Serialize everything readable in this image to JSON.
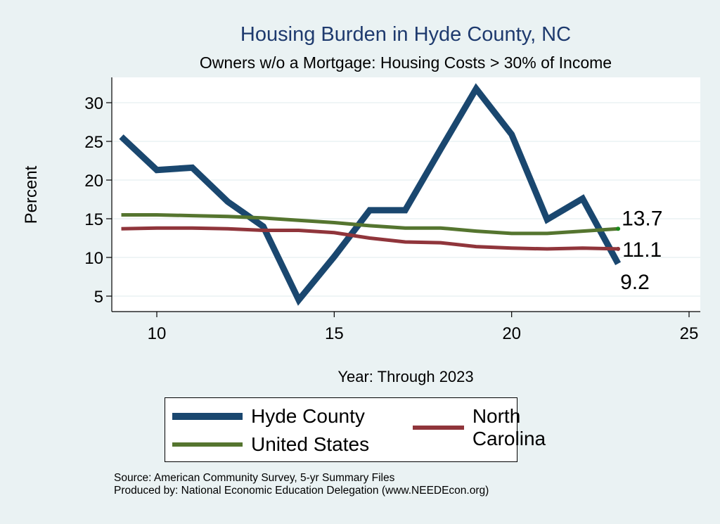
{
  "chart_data": {
    "type": "line",
    "title": "Housing Burden in Hyde County, NC",
    "subtitle": "Owners w/o a Mortgage: Housing Costs > 30% of Income",
    "xlabel": "Year: Through 2023",
    "ylabel": "Percent",
    "xlim": [
      9,
      25
    ],
    "ylim": [
      3.5,
      33
    ],
    "xticks": [
      10,
      15,
      20,
      25
    ],
    "yticks": [
      5,
      10,
      15,
      20,
      25,
      30
    ],
    "grid": true,
    "legend_position": "bottom",
    "x": [
      9,
      10,
      11,
      12,
      13,
      14,
      15,
      16,
      17,
      18,
      19,
      20,
      21,
      22,
      23
    ],
    "series": [
      {
        "name": "Hyde County",
        "color": "#1a476f",
        "values": [
          25.6,
          21.3,
          21.6,
          17.2,
          14.0,
          4.5,
          10.1,
          16.1,
          16.1,
          24.0,
          31.8,
          25.9,
          14.9,
          17.6,
          9.2
        ],
        "end_label": "9.2"
      },
      {
        "name": "North Carolina",
        "color": "#90353b",
        "values": [
          13.7,
          13.8,
          13.8,
          13.7,
          13.5,
          13.5,
          13.2,
          12.5,
          12.0,
          11.9,
          11.4,
          11.2,
          11.1,
          11.2,
          11.1
        ],
        "end_label": "11.1"
      },
      {
        "name": "United States",
        "color": "#55752f",
        "values": [
          15.5,
          15.5,
          15.4,
          15.3,
          15.1,
          14.8,
          14.5,
          14.1,
          13.8,
          13.8,
          13.4,
          13.1,
          13.1,
          13.4,
          13.7
        ],
        "end_label": "13.7"
      }
    ],
    "notes": [
      "Source: American Community Survey, 5-yr Summary Files",
      "Produced by: National Economic Education Delegation (www.NEEDEcon.org)"
    ]
  },
  "legend": {
    "items": [
      {
        "label": "Hyde County",
        "color": "#1a476f"
      },
      {
        "label": "North Carolina",
        "color": "#90353b"
      },
      {
        "label": "United States",
        "color": "#55752f"
      }
    ]
  }
}
